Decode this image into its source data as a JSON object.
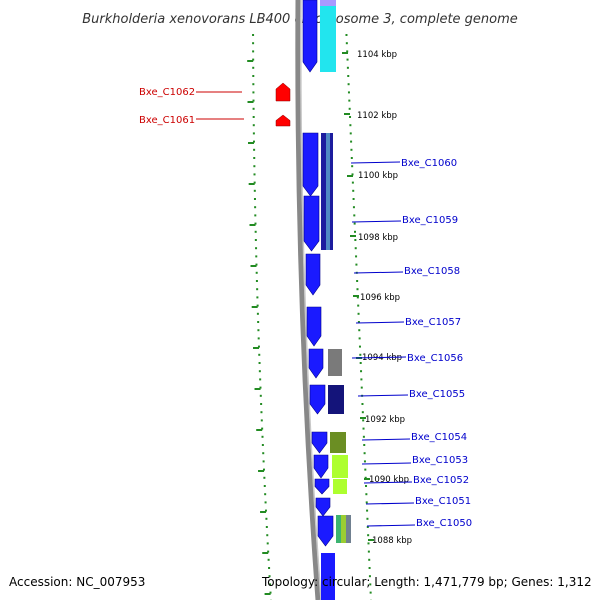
{
  "title": "Burkholderia xenovorans LB400 chromosome 3, complete genome",
  "accession": "Accession: NC_007953",
  "topology": "Topology: circular; Length: 1,471,779 bp; Genes: 1,312",
  "colors": {
    "reverse_label": "#cc0000",
    "forward_label": "#0000cc",
    "cds_forward": "#1a1aff",
    "cds_reverse": "#ff0000",
    "scale_tick": "#228b22",
    "backbone": "#888888"
  },
  "scale_labels": [
    "1104 kbp",
    "1102 kbp",
    "1100 kbp",
    "1098 kbp",
    "1096 kbp",
    "1094 kbp",
    "1092 kbp",
    "1090 kbp",
    "1088 kbp"
  ],
  "reverse_genes": [
    "Bxe_C1062",
    "Bxe_C1061"
  ],
  "forward_genes": [
    "Bxe_C1060",
    "Bxe_C1059",
    "Bxe_C1058",
    "Bxe_C1057",
    "Bxe_C1056",
    "Bxe_C1055",
    "Bxe_C1054",
    "Bxe_C1053",
    "Bxe_C1052",
    "Bxe_C1051",
    "Bxe_C1050"
  ]
}
